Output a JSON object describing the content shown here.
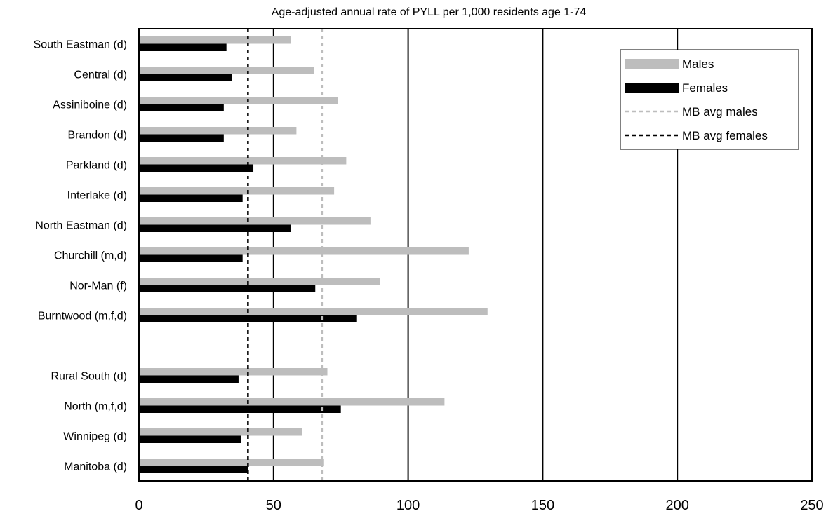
{
  "chart_data": {
    "type": "bar",
    "orientation": "horizontal",
    "title": "Age-adjusted annual rate of PYLL per 1,000 residents age 1-74",
    "xlabel": "",
    "ylabel": "",
    "xlim": [
      0,
      250
    ],
    "xticks": [
      "0",
      "50",
      "100",
      "150",
      "200",
      "250"
    ],
    "grid": "vertical lines at major ticks",
    "legend_position": "top-right",
    "categories": [
      "South Eastman (d)",
      "Central (d)",
      "Assiniboine (d)",
      "Brandon (d)",
      "Parkland (d)",
      "Interlake (d)",
      "North Eastman (d)",
      "Churchill (m,d)",
      "Nor-Man (f)",
      "Burntwood (m,f,d)",
      "",
      "Rural South (d)",
      "North (m,f,d)",
      "Winnipeg (d)",
      "Manitoba (d)"
    ],
    "series": [
      {
        "name": "Males",
        "color": "#bdbdbd",
        "values": [
          56.5,
          65,
          74,
          58.5,
          77,
          72.5,
          86,
          122.5,
          89.5,
          129.5,
          null,
          70,
          113.5,
          60.5,
          68.5
        ]
      },
      {
        "name": "Females",
        "color": "#000000",
        "values": [
          32.5,
          34.5,
          31.5,
          31.5,
          42.5,
          38.5,
          56.5,
          38.5,
          65.5,
          81,
          null,
          37,
          75,
          38,
          40.5
        ]
      }
    ],
    "reference_lines": [
      {
        "name": "MB avg males",
        "value": 68,
        "color": "#bdbdbd",
        "style": "dashed"
      },
      {
        "name": "MB avg females",
        "value": 40.5,
        "color": "#000000",
        "style": "dashed"
      }
    ]
  }
}
